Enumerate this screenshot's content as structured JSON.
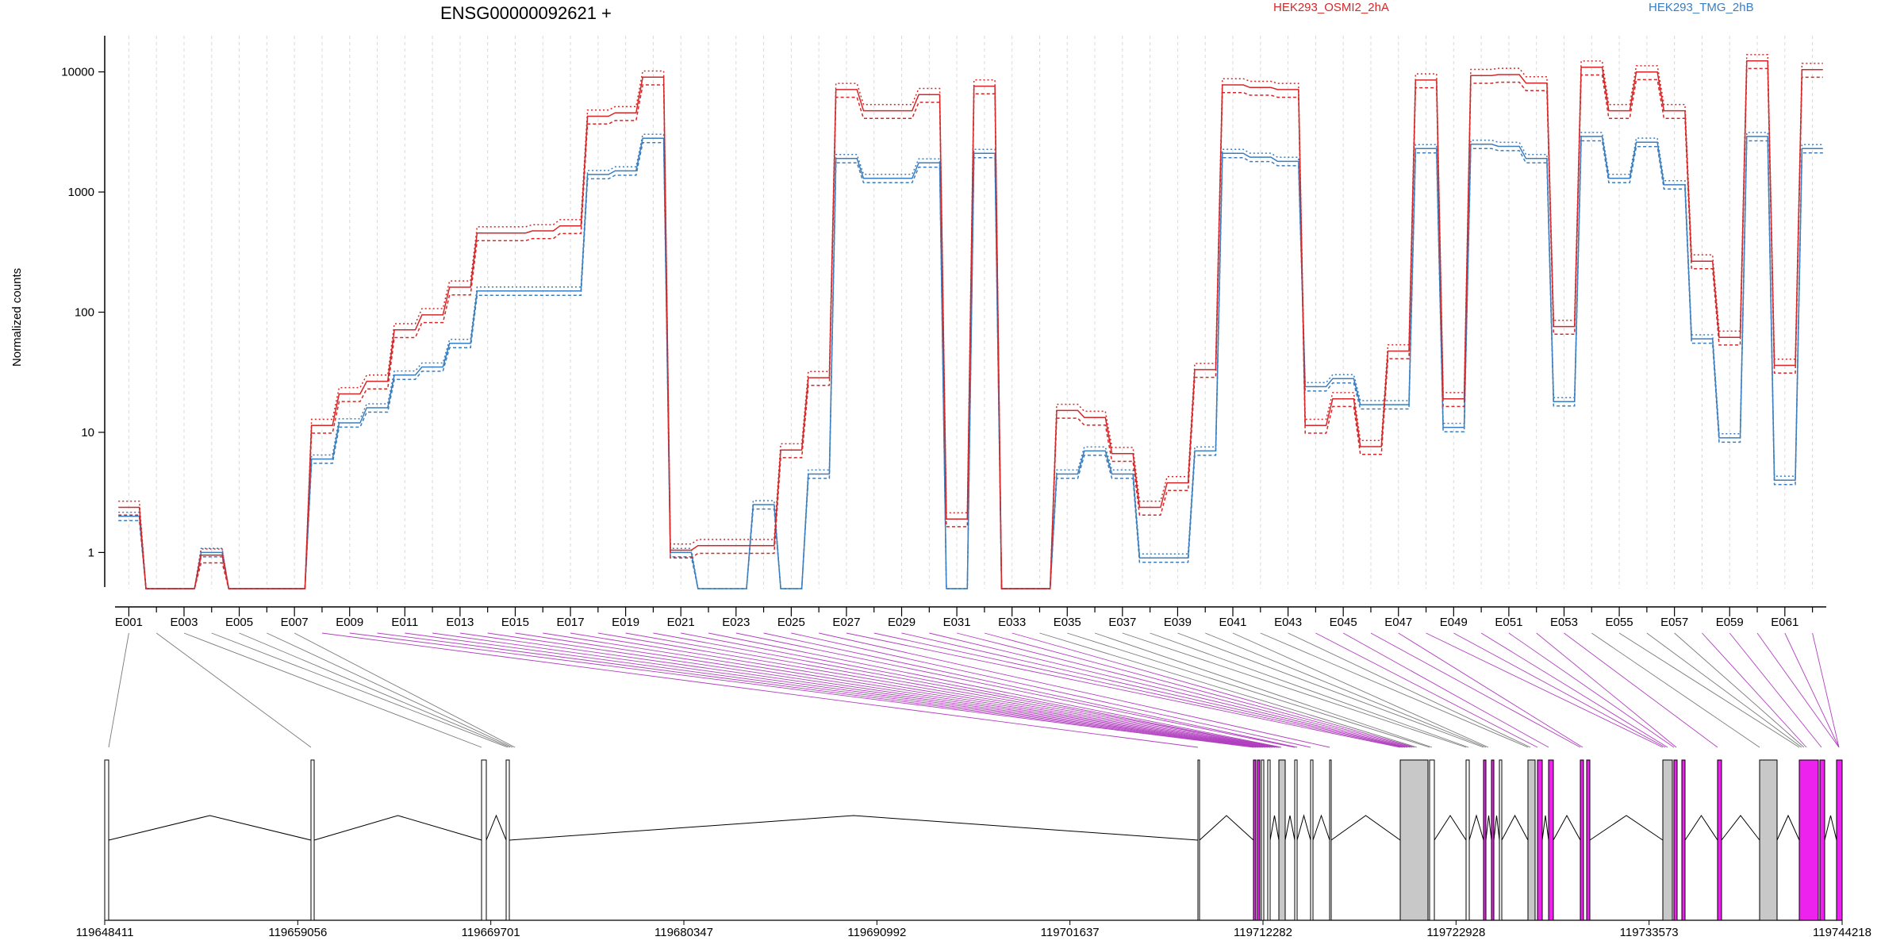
{
  "chart_data": {
    "type": "line",
    "title": "ENSG00000092621 +",
    "xlabel": "",
    "ylabel": "Normalized counts",
    "y_scale": "log",
    "ylim": [
      0.5,
      20000
    ],
    "yticks": [
      1,
      10,
      100,
      1000,
      10000
    ],
    "ytick_labels": [
      "1",
      "10",
      "100",
      "1000",
      "10000"
    ],
    "grid": "vertical dashed lines at each exon",
    "legend": [
      {
        "label": "HEK293_OSMI2_2hA",
        "color": "#d62728"
      },
      {
        "label": "HEK293_TMG_2hB",
        "color": "#3a7ebf"
      }
    ],
    "exon_tick_labels": [
      "E001",
      "E003",
      "E005",
      "E007",
      "E009",
      "E011",
      "E013",
      "E015",
      "E017",
      "E019",
      "E021",
      "E023",
      "E025",
      "E027",
      "E029",
      "E031",
      "E033",
      "E035",
      "E037",
      "E039",
      "E041",
      "E043",
      "E045",
      "E047",
      "E049",
      "E051",
      "E053",
      "E055",
      "E057",
      "E059",
      "E061"
    ],
    "red_profile": [
      2.5,
      0.5,
      0.5,
      1.0,
      0.5,
      0.5,
      0.5,
      12,
      22,
      28,
      75,
      100,
      170,
      480,
      480,
      500,
      550,
      4500,
      4800,
      9500,
      1.1,
      1.2,
      1.2,
      1.2,
      7.5,
      30,
      7500,
      5000,
      5000,
      6800,
      2,
      8000,
      0.5,
      0.5,
      16,
      14,
      7,
      2.5,
      4,
      35,
      8200,
      7800,
      7500,
      12,
      20,
      8,
      50,
      9000,
      20,
      9800,
      10000,
      8500,
      80,
      11500,
      5000,
      10500,
      5000,
      280,
      65,
      13000,
      38,
      11000
    ],
    "blue_profile": [
      2.0,
      0.5,
      0.5,
      1.0,
      0.5,
      0.5,
      0.5,
      6,
      12,
      16,
      30,
      35,
      55,
      150,
      150,
      150,
      150,
      1400,
      1500,
      2800,
      1.0,
      0.5,
      0.5,
      2.5,
      0.5,
      4.5,
      1900,
      1300,
      1300,
      1750,
      0.5,
      2100,
      0.5,
      0.5,
      4.5,
      7,
      4.5,
      0.9,
      0.9,
      7,
      2100,
      1950,
      1800,
      24,
      28,
      17,
      17,
      2300,
      11,
      2500,
      2400,
      1900,
      18,
      2900,
      1300,
      2600,
      1150,
      60,
      9,
      2900,
      4,
      2300
    ],
    "genomic_axis_labels": [
      "119648411",
      "119659056",
      "119669701",
      "119680347",
      "119690992",
      "119701637",
      "119712282",
      "119722928",
      "119733573",
      "119744218"
    ]
  }
}
